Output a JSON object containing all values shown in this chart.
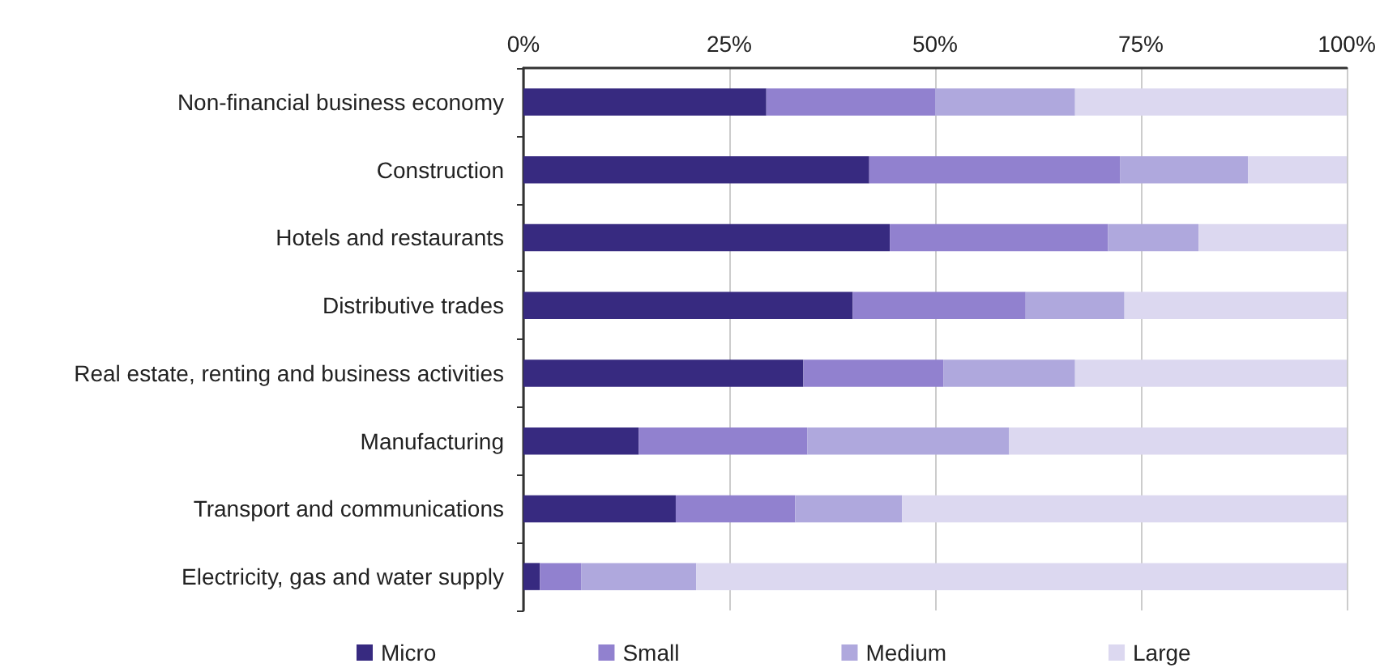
{
  "chart_data": {
    "type": "bar",
    "orientation": "horizontal",
    "stacked": true,
    "categories": [
      "Non-financial business economy",
      "Construction",
      "Hotels and restaurants",
      "Distributive trades",
      "Real estate, renting and business activities",
      "Manufacturing",
      "Transport and communications",
      "Electricity, gas and water supply"
    ],
    "series": [
      {
        "name": "Micro",
        "color": "#372a80",
        "values": [
          29.5,
          42,
          44.5,
          40,
          34,
          14,
          18.5,
          2
        ]
      },
      {
        "name": "Small",
        "color": "#9181cf",
        "values": [
          20.5,
          30.5,
          26.5,
          21,
          17,
          20.5,
          14.5,
          5
        ]
      },
      {
        "name": "Medium",
        "color": "#afa8dd",
        "values": [
          17,
          15.5,
          11,
          12,
          16,
          24.5,
          13,
          14
        ]
      },
      {
        "name": "Large",
        "color": "#dcd8f0",
        "values": [
          33,
          12,
          18,
          27,
          33,
          41,
          54,
          79
        ]
      }
    ],
    "xlim": [
      0,
      100
    ],
    "xticks": [
      {
        "value": 0,
        "label": "0%"
      },
      {
        "value": 25,
        "label": "25%"
      },
      {
        "value": 50,
        "label": "50%"
      },
      {
        "value": 75,
        "label": "75%"
      },
      {
        "value": 100,
        "label": "100%"
      }
    ],
    "grid": "x",
    "legend": "bottom"
  }
}
